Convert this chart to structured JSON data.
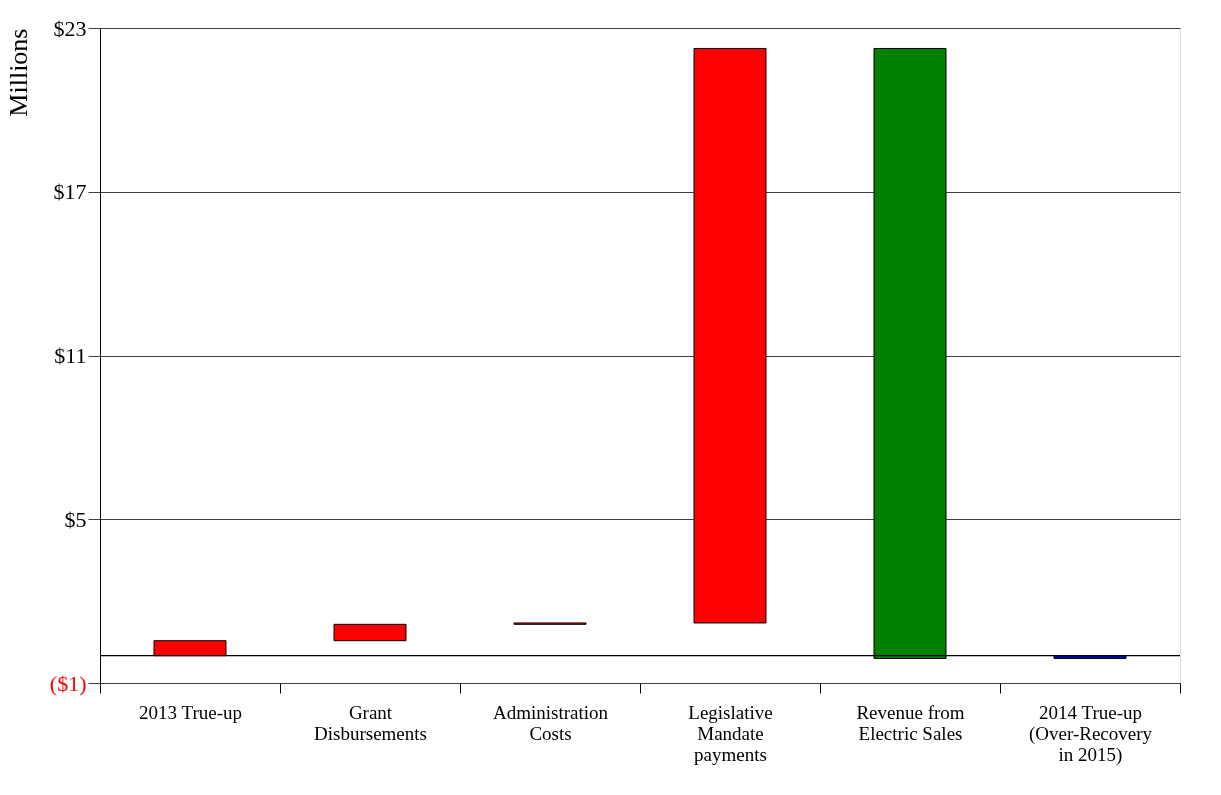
{
  "chart_data": {
    "type": "bar",
    "ylabel": "Millions",
    "categories": [
      "2013 True-up",
      "Grant\nDisbursements",
      "Administration\nCosts",
      "Legislative\nMandate\npayments",
      "Revenue from\nElectric Sales",
      "2014 True-up\n(Over-Recovery\nin 2015)"
    ],
    "base": [
      0,
      0.55,
      1.15,
      1.2,
      -0.1,
      0
    ],
    "values": [
      0.55,
      0.6,
      0.05,
      21.05,
      22.35,
      -0.1
    ],
    "colors": [
      "#ff0000",
      "#ff0000",
      "#ff0000",
      "#ff0000",
      "#008000",
      "#0000cc"
    ],
    "ylim": [
      -1,
      23
    ],
    "yticks": [
      {
        "value": -1,
        "label": "($1)"
      },
      {
        "value": 5,
        "label": "$5"
      },
      {
        "value": 11,
        "label": "$11"
      },
      {
        "value": 17,
        "label": "$17"
      },
      {
        "value": 23,
        "label": "$23"
      }
    ],
    "grid": "y",
    "ref_lines": [
      {
        "axis": "y",
        "value": 0,
        "label": null
      }
    ]
  }
}
